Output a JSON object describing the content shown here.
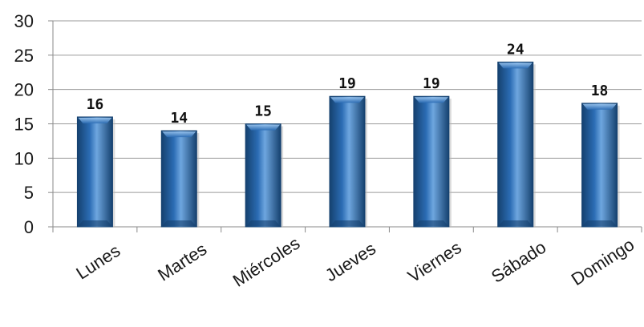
{
  "chart_data": {
    "type": "bar",
    "title": "",
    "xlabel": "",
    "ylabel": "",
    "categories": [
      "Lunes",
      "Martes",
      "Miércoles",
      "Jueves",
      "Viernes",
      "Sábado",
      "Domingo"
    ],
    "values": [
      16,
      14,
      15,
      19,
      19,
      24,
      18
    ],
    "data_labels": [
      "16",
      "14",
      "15",
      "19",
      "19",
      "24",
      "18"
    ],
    "ylim": [
      0,
      30
    ],
    "yticks": [
      0,
      5,
      10,
      15,
      20,
      25,
      30
    ],
    "ytick_labels": [
      "0",
      "5",
      "10",
      "15",
      "20",
      "25",
      "30"
    ],
    "grid": true,
    "legend": "none",
    "bar_color": "#2b6cb4",
    "bar_dark": "#15416f",
    "bar_light": "#6ea6df",
    "gridline_color": "#9a9a9a",
    "axis_color": "#8a8a8a"
  }
}
